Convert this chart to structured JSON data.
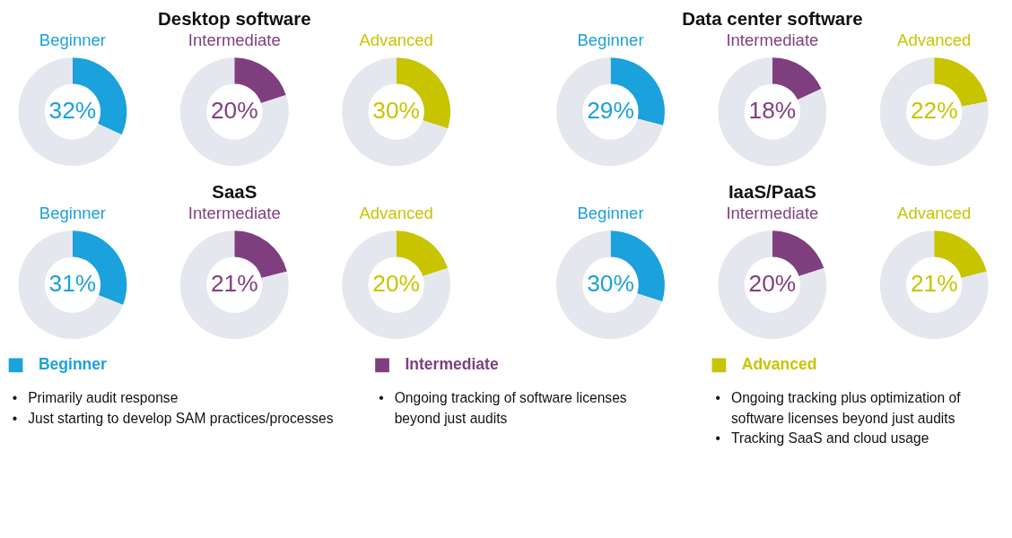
{
  "chart_data": [
    {
      "type": "other",
      "title": "Desktop software"
    },
    {
      "type": "donut",
      "title": "Beginner",
      "categories": [
        null,
        null
      ],
      "values": [
        32,
        68
      ],
      "colors": [
        "#1ba1dc",
        "#e4e7ee"
      ],
      "value_labels": [
        "32%",
        null
      ]
    },
    {
      "type": "donut",
      "title": "Intermediate",
      "categories": [
        null,
        null
      ],
      "values": [
        20,
        80
      ],
      "colors": [
        "#7f3f7f",
        "#e4e7ee"
      ],
      "value_labels": [
        "20%",
        null
      ]
    },
    {
      "type": "donut",
      "title": "Advanced",
      "categories": [
        null,
        null
      ],
      "values": [
        30,
        70
      ],
      "colors": [
        "#c8c400",
        "#e4e7ee"
      ],
      "value_labels": [
        "30%",
        null
      ]
    },
    {
      "type": "other",
      "title": "Data center software"
    },
    {
      "type": "donut",
      "title": "Beginner",
      "categories": [
        null,
        null
      ],
      "values": [
        29,
        71
      ],
      "colors": [
        "#1ba1dc",
        "#e4e7ee"
      ],
      "value_labels": [
        "29%",
        null
      ]
    },
    {
      "type": "donut",
      "title": "Intermediate",
      "categories": [
        null,
        null
      ],
      "values": [
        18,
        82
      ],
      "colors": [
        "#7f3f7f",
        "#e4e7ee"
      ],
      "value_labels": [
        "18%",
        null
      ]
    },
    {
      "type": "donut",
      "title": "Advanced",
      "categories": [
        null,
        null
      ],
      "values": [
        22,
        78
      ],
      "colors": [
        "#c8c400",
        "#e4e7ee"
      ],
      "value_labels": [
        "22%",
        null
      ]
    },
    {
      "type": "other",
      "title": "SaaS"
    },
    {
      "type": "donut",
      "title": "Beginner",
      "categories": [
        null,
        null
      ],
      "values": [
        31,
        69
      ],
      "colors": [
        "#1ba1dc",
        "#e4e7ee"
      ],
      "value_labels": [
        "31%",
        null
      ]
    },
    {
      "type": "donut",
      "title": "Intermediate",
      "categories": [
        null,
        null
      ],
      "values": [
        21,
        79
      ],
      "colors": [
        "#7f3f7f",
        "#e4e7ee"
      ],
      "value_labels": [
        "21%",
        null
      ]
    },
    {
      "type": "donut",
      "title": "Advanced",
      "categories": [
        null,
        null
      ],
      "values": [
        20,
        80
      ],
      "colors": [
        "#c8c400",
        "#e4e7ee"
      ],
      "value_labels": [
        "20%",
        null
      ]
    },
    {
      "type": "other",
      "title": "IaaS/PaaS"
    },
    {
      "type": "donut",
      "title": "Beginner",
      "categories": [
        null,
        null
      ],
      "values": [
        30,
        70
      ],
      "colors": [
        "#1ba1dc",
        "#e4e7ee"
      ],
      "value_labels": [
        "30%",
        null
      ]
    },
    {
      "type": "donut",
      "title": "Intermediate",
      "categories": [
        null,
        null
      ],
      "values": [
        20,
        80
      ],
      "colors": [
        "#7f3f7f",
        "#e4e7ee"
      ],
      "value_labels": [
        "20%",
        null
      ]
    },
    {
      "type": "donut",
      "title": "Advanced",
      "categories": [
        null,
        null
      ],
      "values": [
        21,
        79
      ],
      "colors": [
        "#c8c400",
        "#e4e7ee"
      ],
      "value_labels": [
        "21%",
        null
      ]
    },
    {
      "type": "other",
      "series": [
        {
          "name": "Beginner",
          "color": "#1ba1dc"
        }
      ],
      "annotations": [
        "• Primarily audit response",
        "• Just starting to develop SAM practices/processes"
      ]
    },
    {
      "type": "other",
      "series": [
        {
          "name": "Intermediate",
          "color": "#7f3f7f"
        }
      ],
      "annotations": [
        "• Ongoing tracking of software licenses\nbeyond just audits"
      ]
    },
    {
      "type": "other",
      "series": [
        {
          "name": "Advanced",
          "color": "#c8c400"
        }
      ],
      "annotations": [
        "• Ongoing tracking plus optimization of\nsoftware licenses beyond just audits",
        "• Tracking SaaS and cloud usage"
      ]
    }
  ]
}
